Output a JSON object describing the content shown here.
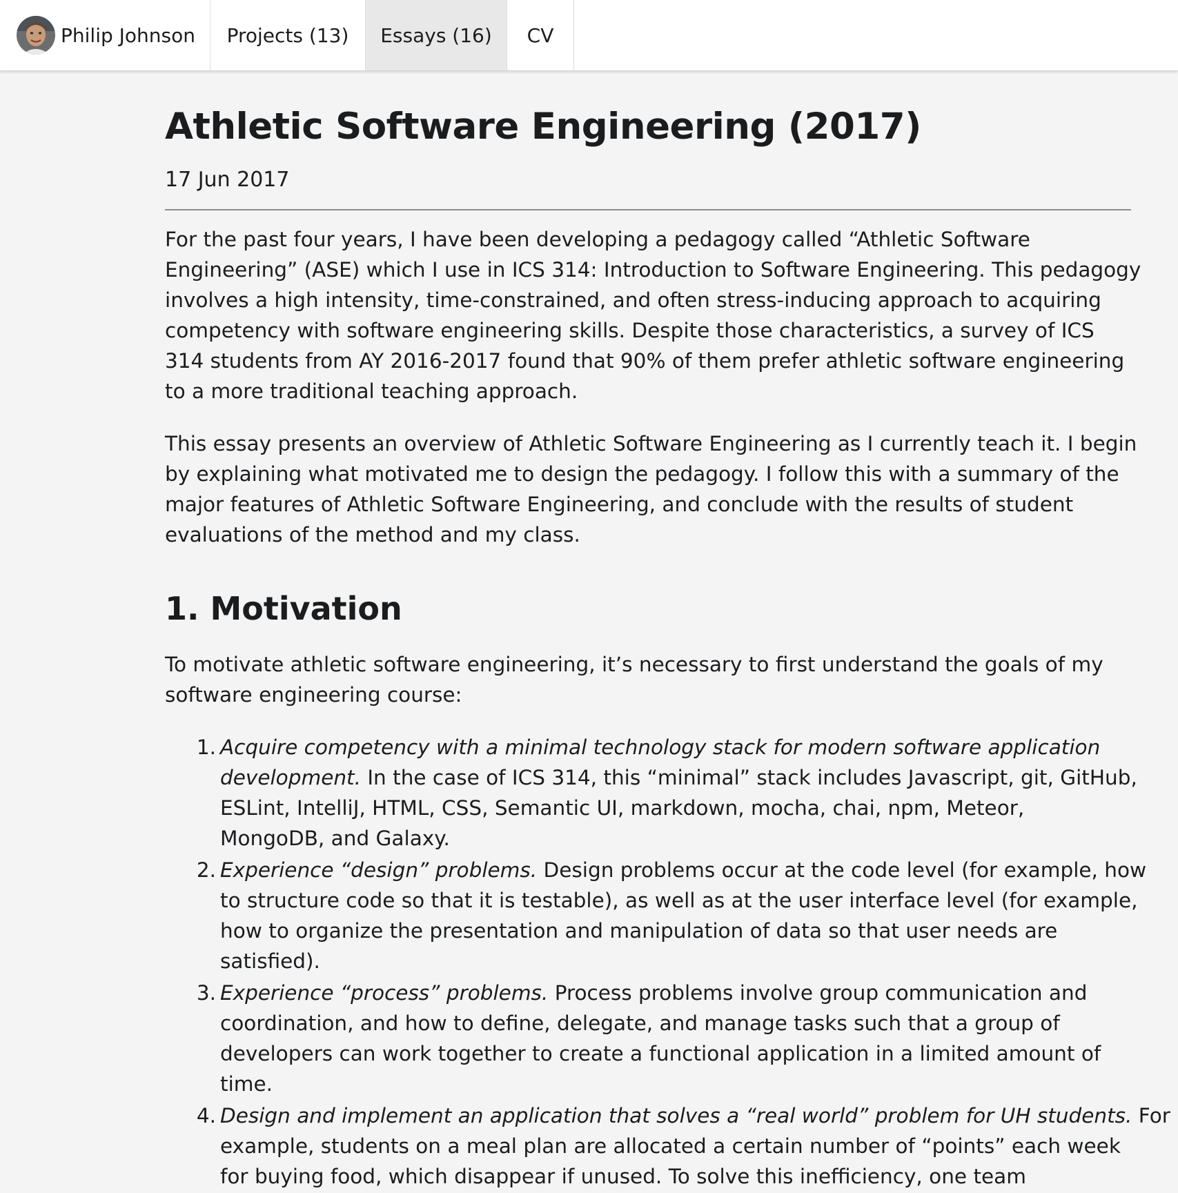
{
  "nav": {
    "home_label": "Philip Johnson",
    "projects_label": "Projects (13)",
    "essays_label": "Essays (16)",
    "cv_label": "CV"
  },
  "article": {
    "title": "Athletic Software Engineering (2017)",
    "date": "17 Jun 2017",
    "intro_paragraphs": [
      [
        "For the past four years, I have been developing a pedagogy called “Athletic Software",
        "Engineering” (ASE) which I use in ICS 314: Introduction to Software Engineering. This pedagogy",
        "involves a high intensity, time-constrained, and often stress-inducing approach to acquiring",
        "competency with software engineering skills. Despite those characteristics, a survey of ICS",
        "314 students from AY 2016-2017 found that 90% of them prefer athletic software engineering",
        "to a more traditional teaching approach."
      ],
      [
        "This essay presents an overview of Athletic Software Engineering as I currently teach it. I begin",
        "by explaining what motivated me to design the pedagogy. I follow this with a summary of the",
        "major features of Athletic Software Engineering, and conclude with the results of student",
        "evaluations of the method and my class."
      ]
    ],
    "section1": {
      "heading": "1. Motivation",
      "intro": [
        "To motivate athletic software engineering, it’s necessary to first understand the goals of my",
        "software engineering course:"
      ],
      "goals": [
        {
          "number": "1.",
          "lines": [
            {
              "em": "Acquire competency with a minimal technology stack for modern software application",
              "rest": ""
            },
            {
              "em": "development.",
              "rest": " In the case of ICS 314, this “minimal” stack includes Javascript, git, GitHub,"
            },
            {
              "em": "",
              "rest": "ESLint, IntelliJ, HTML, CSS, Semantic UI, markdown, mocha, chai, npm, Meteor,"
            },
            {
              "em": "",
              "rest": "MongoDB, and Galaxy."
            }
          ]
        },
        {
          "number": "2.",
          "lines": [
            {
              "em": "Experience “design” problems.",
              "rest": " Design problems occur at the code level (for example, how"
            },
            {
              "em": "",
              "rest": "to structure code so that it is testable), as well as at the user interface level (for example,"
            },
            {
              "em": "",
              "rest": "how to organize the presentation and manipulation of data so that user needs are"
            },
            {
              "em": "",
              "rest": "satisfied)."
            }
          ]
        },
        {
          "number": "3.",
          "lines": [
            {
              "em": "Experience “process” problems.",
              "rest": " Process problems involve group communication and"
            },
            {
              "em": "",
              "rest": "coordination, and how to define, delegate, and manage tasks such that a group of"
            },
            {
              "em": "",
              "rest": "developers can work together to create a functional application in a limited amount of"
            },
            {
              "em": "",
              "rest": "time."
            }
          ]
        },
        {
          "number": "4.",
          "lines": [
            {
              "em": "Design and implement an application that solves a “real world” problem for UH students.",
              "rest": " For"
            },
            {
              "em": "",
              "rest": "example, students on a meal plan are allocated a certain number of “points” each week"
            },
            {
              "em": "",
              "rest": "for buying food, which disappear if unused. To solve this inefficiency, one team"
            }
          ]
        }
      ]
    }
  }
}
